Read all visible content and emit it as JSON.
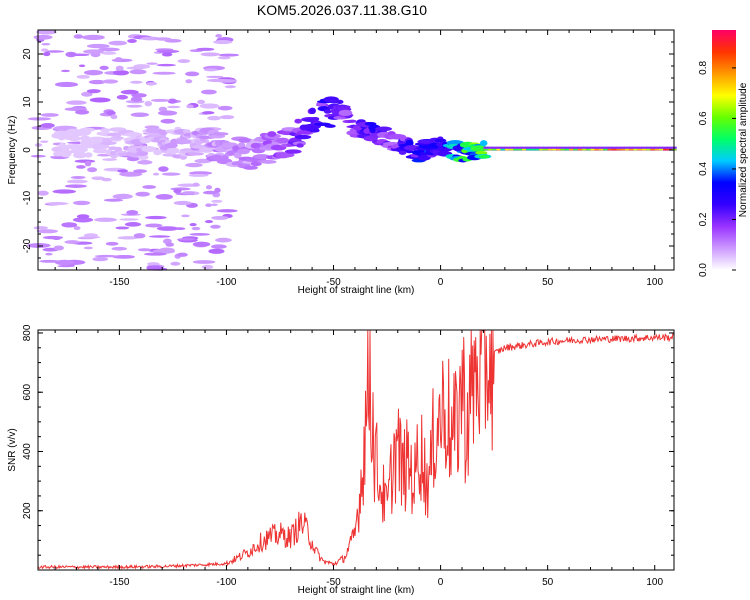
{
  "title": "KOM5.2026.037.11.38.G10",
  "chart_data": [
    {
      "type": "heatmap",
      "name": "spectrogram",
      "xlabel": "Height of straight line (km)",
      "ylabel": "Frequency (Hz)",
      "xlim": [
        -188,
        109
      ],
      "ylim": [
        -25,
        25
      ],
      "xticks": [
        -150,
        -100,
        -50,
        0,
        50,
        100
      ],
      "xtick_labels": [
        "-150",
        "-100",
        "-50",
        "0",
        "50",
        "100"
      ],
      "yticks": [
        -20,
        -10,
        0,
        10,
        20
      ],
      "ytick_labels": [
        "-20",
        "-10",
        "0",
        "10",
        "20"
      ],
      "ridge_x": [
        -175,
        -160,
        -145,
        -130,
        -115,
        -100,
        -90,
        -80,
        -70,
        -62,
        -55,
        -50,
        -45,
        -40,
        -35,
        -30,
        -25,
        -20,
        -15,
        -10,
        -5,
        0,
        5,
        10,
        15,
        20,
        40,
        60,
        80,
        100,
        109
      ],
      "ridge_y": [
        1.5,
        2.0,
        1.2,
        1.5,
        1.5,
        0.5,
        -1.0,
        0.5,
        2.0,
        5.0,
        7.5,
        8.0,
        8.5,
        4.5,
        4.0,
        3.5,
        2.5,
        1.5,
        0.5,
        -0.5,
        0.5,
        1.0,
        0.0,
        -0.5,
        0.0,
        0.0,
        0.0,
        0.0,
        0.0,
        0.0,
        0.0
      ],
      "ridge_amplitude": [
        0.05,
        0.05,
        0.08,
        0.08,
        0.1,
        0.12,
        0.12,
        0.15,
        0.2,
        0.25,
        0.3,
        0.25,
        0.25,
        0.3,
        0.3,
        0.3,
        0.25,
        0.25,
        0.3,
        0.35,
        0.4,
        0.35,
        0.45,
        0.55,
        0.6,
        0.7,
        0.75,
        0.8,
        0.85,
        0.9,
        0.9
      ],
      "colorbar": {
        "label": "Normalized spectral amplitude",
        "ticks": [
          0.0,
          0.2,
          0.4,
          0.6,
          0.8
        ],
        "tick_labels": [
          "0.0",
          "0.2",
          "0.4",
          "0.6",
          "0.8"
        ],
        "range": [
          0.0,
          0.95
        ],
        "colors": [
          "#ffffff",
          "#cc99ff",
          "#9933ff",
          "#3300ff",
          "#0000ff",
          "#00ccff",
          "#00ff66",
          "#66ff00",
          "#ffff00",
          "#ff9900",
          "#ff3300",
          "#ff0066"
        ]
      }
    },
    {
      "type": "line",
      "name": "snr",
      "xlabel": "Height of straight line (km)",
      "ylabel": "SNR (v/v)",
      "xlim": [
        -188,
        109
      ],
      "ylim": [
        0,
        810
      ],
      "xticks": [
        -150,
        -100,
        -50,
        0,
        50,
        100
      ],
      "xtick_labels": [
        "-150",
        "-100",
        "-50",
        "0",
        "50",
        "100"
      ],
      "yticks": [
        200,
        400,
        600,
        800
      ],
      "ytick_labels": [
        "200",
        "400",
        "600",
        "800"
      ],
      "color": "#ee3333",
      "x": [
        -188,
        -170,
        -150,
        -130,
        -110,
        -100,
        -95,
        -90,
        -85,
        -80,
        -75,
        -70,
        -65,
        -62,
        -58,
        -55,
        -50,
        -45,
        -40,
        -37,
        -35,
        -33,
        -31,
        -29,
        -27,
        -25,
        -22,
        -20,
        -18,
        -15,
        -12,
        -10,
        -7,
        -5,
        -3,
        0,
        3,
        5,
        8,
        10,
        12,
        15,
        18,
        20,
        25,
        30,
        35,
        40,
        50,
        60,
        70,
        80,
        90,
        100,
        109
      ],
      "y": [
        10,
        10,
        10,
        12,
        18,
        22,
        40,
        60,
        90,
        110,
        120,
        110,
        160,
        130,
        60,
        30,
        20,
        40,
        120,
        300,
        500,
        700,
        400,
        320,
        260,
        200,
        380,
        420,
        330,
        360,
        300,
        440,
        310,
        300,
        470,
        520,
        560,
        430,
        500,
        650,
        480,
        620,
        690,
        700,
        730,
        750,
        755,
        760,
        770,
        775,
        778,
        780,
        782,
        785,
        785
      ]
    }
  ]
}
